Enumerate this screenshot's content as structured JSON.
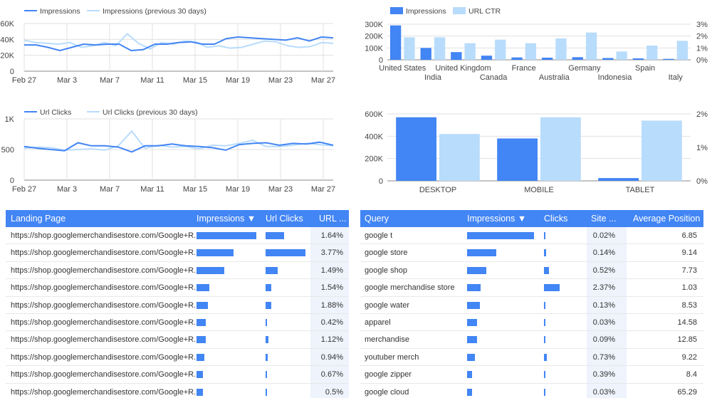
{
  "colors": {
    "primary": "#4285f4",
    "secondary": "#b8dcfb",
    "header_bg": "#4285f4",
    "grid": "#e0e0e0"
  },
  "chart_data": [
    {
      "type": "line",
      "legend": [
        "Impressions",
        "Impressions (previous 30 days)"
      ],
      "x_ticks": [
        "Feb 27",
        "Mar 3",
        "Mar 7",
        "Mar 11",
        "Mar 15",
        "Mar 19",
        "Mar 23",
        "Mar 27"
      ],
      "y_ticks": [
        "0",
        "20K",
        "40K",
        "60K"
      ],
      "ylim": [
        0,
        60000
      ],
      "series": [
        {
          "name": "Impressions",
          "values": [
            33000,
            33000,
            30000,
            26000,
            30000,
            34000,
            33000,
            34000,
            34000,
            26000,
            27000,
            34000,
            34000,
            36000,
            37000,
            34000,
            34000,
            41000,
            43000,
            42000,
            41000,
            40000,
            39000,
            42000,
            38000,
            43000,
            42000
          ]
        },
        {
          "name": "Impressions (previous 30 days)",
          "values": [
            39000,
            36000,
            35000,
            34000,
            36000,
            30000,
            32000,
            36000,
            32000,
            47000,
            35000,
            28000,
            36000,
            34000,
            38000,
            37000,
            30000,
            32000,
            29000,
            30000,
            34000,
            38000,
            37000,
            32000,
            30000,
            31000,
            36000,
            35000
          ]
        }
      ]
    },
    {
      "type": "bar",
      "legend": [
        "Impressions",
        "URL CTR"
      ],
      "categories": [
        "United States",
        "India",
        "United Kingdom",
        "Canada",
        "France",
        "Australia",
        "Germany",
        "Indonesia",
        "Spain",
        "Italy"
      ],
      "y_ticks": [
        "0",
        "100K",
        "200K",
        "300K"
      ],
      "y2_ticks": [
        "0%",
        "1%",
        "2%",
        "3%"
      ],
      "ylim": [
        0,
        300000
      ],
      "y2lim": [
        0,
        3
      ],
      "series": [
        {
          "name": "Impressions",
          "values": [
            290000,
            100000,
            65000,
            35000,
            20000,
            18000,
            22000,
            15000,
            12000,
            8000
          ]
        },
        {
          "name": "URL CTR",
          "values": [
            1.9,
            1.9,
            1.4,
            1.7,
            1.4,
            1.8,
            2.3,
            0.7,
            1.2,
            1.6
          ]
        }
      ]
    },
    {
      "type": "line",
      "legend": [
        "Url Clicks",
        "Url Clicks (previous 30 days)"
      ],
      "x_ticks": [
        "Feb 27",
        "Mar 3",
        "Mar 7",
        "Mar 11",
        "Mar 15",
        "Mar 19",
        "Mar 23",
        "Mar 27"
      ],
      "y_ticks": [
        "0",
        "500",
        "1K"
      ],
      "ylim": [
        0,
        1000
      ],
      "series": [
        {
          "name": "Url Clicks",
          "values": [
            550,
            520,
            500,
            480,
            610,
            560,
            560,
            540,
            460,
            560,
            560,
            590,
            560,
            550,
            530,
            490,
            580,
            600,
            610,
            570,
            600,
            590,
            620,
            570
          ]
        },
        {
          "name": "Url Clicks (previous 30 days)",
          "values": [
            520,
            540,
            530,
            490,
            500,
            510,
            490,
            560,
            800,
            520,
            570,
            540,
            550,
            510,
            570,
            560,
            600,
            650,
            550,
            550,
            570,
            600,
            580,
            560
          ]
        }
      ]
    },
    {
      "type": "bar",
      "categories": [
        "DESKTOP",
        "MOBILE",
        "TABLET"
      ],
      "y_ticks": [
        "0",
        "200K",
        "400K",
        "600K"
      ],
      "y2_ticks": [
        "0%",
        "1%",
        "2%"
      ],
      "ylim": [
        0,
        600000
      ],
      "y2lim": [
        0,
        2
      ],
      "series": [
        {
          "values": [
            570000,
            380000,
            25000
          ]
        },
        {
          "values": [
            1.4,
            1.9,
            1.8
          ]
        }
      ]
    }
  ],
  "landing_table": {
    "headers": [
      "Landing Page",
      "Impressions ▼",
      "Url Clicks",
      "URL ..."
    ],
    "rows": [
      {
        "page": "https://shop.googlemerchandisestore.com/Google+R...",
        "imp": 1.0,
        "clicks": 0.46,
        "ctr": "1.64%"
      },
      {
        "page": "https://shop.googlemerchandisestore.com/Google+R...",
        "imp": 0.62,
        "clicks": 1.0,
        "ctr": "3.77%"
      },
      {
        "page": "https://shop.googlemerchandisestore.com/Google+R...",
        "imp": 0.47,
        "clicks": 0.3,
        "ctr": "1.49%"
      },
      {
        "page": "https://shop.googlemerchandisestore.com/Google+R...",
        "imp": 0.21,
        "clicks": 0.15,
        "ctr": "1.54%"
      },
      {
        "page": "https://shop.googlemerchandisestore.com/Google+R...",
        "imp": 0.19,
        "clicks": 0.15,
        "ctr": "1.88%"
      },
      {
        "page": "https://shop.googlemerchandisestore.com/Google+R...",
        "imp": 0.16,
        "clicks": 0.04,
        "ctr": "0.42%"
      },
      {
        "page": "https://shop.googlemerchandisestore.com/Google+R...",
        "imp": 0.15,
        "clicks": 0.07,
        "ctr": "1.12%"
      },
      {
        "page": "https://shop.googlemerchandisestore.com/Google+R...",
        "imp": 0.13,
        "clicks": 0.05,
        "ctr": "0.94%"
      },
      {
        "page": "https://shop.googlemerchandisestore.com/Google+R...",
        "imp": 0.11,
        "clicks": 0.03,
        "ctr": "0.67%"
      },
      {
        "page": "https://shop.googlemerchandisestore.com/Google+R...",
        "imp": 0.11,
        "clicks": 0.02,
        "ctr": "0.5%"
      }
    ]
  },
  "query_table": {
    "headers": [
      "Query",
      "Impressions ▼",
      "Clicks",
      "Site ...",
      "Average Position"
    ],
    "rows": [
      {
        "query": "google t",
        "imp": 1.0,
        "clicks": 0.02,
        "ctr": "0.02%",
        "pos": "6.85"
      },
      {
        "query": "google store",
        "imp": 0.44,
        "clicks": 0.15,
        "ctr": "0.14%",
        "pos": "9.14"
      },
      {
        "query": "google shop",
        "imp": 0.29,
        "clicks": 0.33,
        "ctr": "0.52%",
        "pos": "7.73"
      },
      {
        "query": "google merchandise store",
        "imp": 0.2,
        "clicks": 1.0,
        "ctr": "2.37%",
        "pos": "1.03"
      },
      {
        "query": "google water",
        "imp": 0.19,
        "clicks": 0.02,
        "ctr": "0.13%",
        "pos": "8.53"
      },
      {
        "query": "apparel",
        "imp": 0.15,
        "clicks": 0.01,
        "ctr": "0.03%",
        "pos": "14.58"
      },
      {
        "query": "merchandise",
        "imp": 0.15,
        "clicks": 0.02,
        "ctr": "0.09%",
        "pos": "12.85"
      },
      {
        "query": "youtuber merch",
        "imp": 0.12,
        "clicks": 0.2,
        "ctr": "0.73%",
        "pos": "9.22"
      },
      {
        "query": "google zipper",
        "imp": 0.07,
        "clicks": 0.05,
        "ctr": "0.39%",
        "pos": "8.4"
      },
      {
        "query": "google cloud",
        "imp": 0.07,
        "clicks": 0.01,
        "ctr": "0.03%",
        "pos": "65.29"
      }
    ]
  }
}
